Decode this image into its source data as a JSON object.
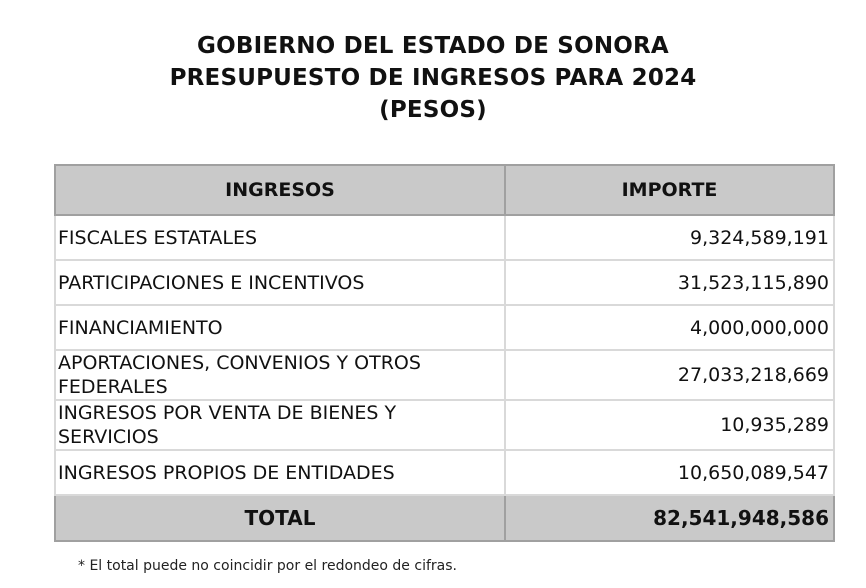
{
  "header": {
    "line1": "GOBIERNO DEL ESTADO DE SONORA",
    "line2": "PRESUPUESTO DE INGRESOS PARA 2024",
    "line3": "(PESOS)"
  },
  "table": {
    "columns": [
      "INGRESOS",
      "IMPORTE"
    ],
    "rows": [
      {
        "label": "FISCALES ESTATALES",
        "amount": "9,324,589,191"
      },
      {
        "label": "PARTICIPACIONES E INCENTIVOS",
        "amount": "31,523,115,890"
      },
      {
        "label": "FINANCIAMIENTO",
        "amount": "4,000,000,000"
      },
      {
        "label": "APORTACIONES, CONVENIOS Y OTROS FEDERALES",
        "amount": "27,033,218,669"
      },
      {
        "label": "INGRESOS POR VENTA DE BIENES Y SERVICIOS",
        "amount": "10,935,289"
      },
      {
        "label": "INGRESOS PROPIOS DE ENTIDADES",
        "amount": "10,650,089,547"
      }
    ],
    "total": {
      "label": "TOTAL",
      "amount": "82,541,948,586"
    }
  },
  "footnote": "* El total puede no coincidir por el redondeo de cifras."
}
